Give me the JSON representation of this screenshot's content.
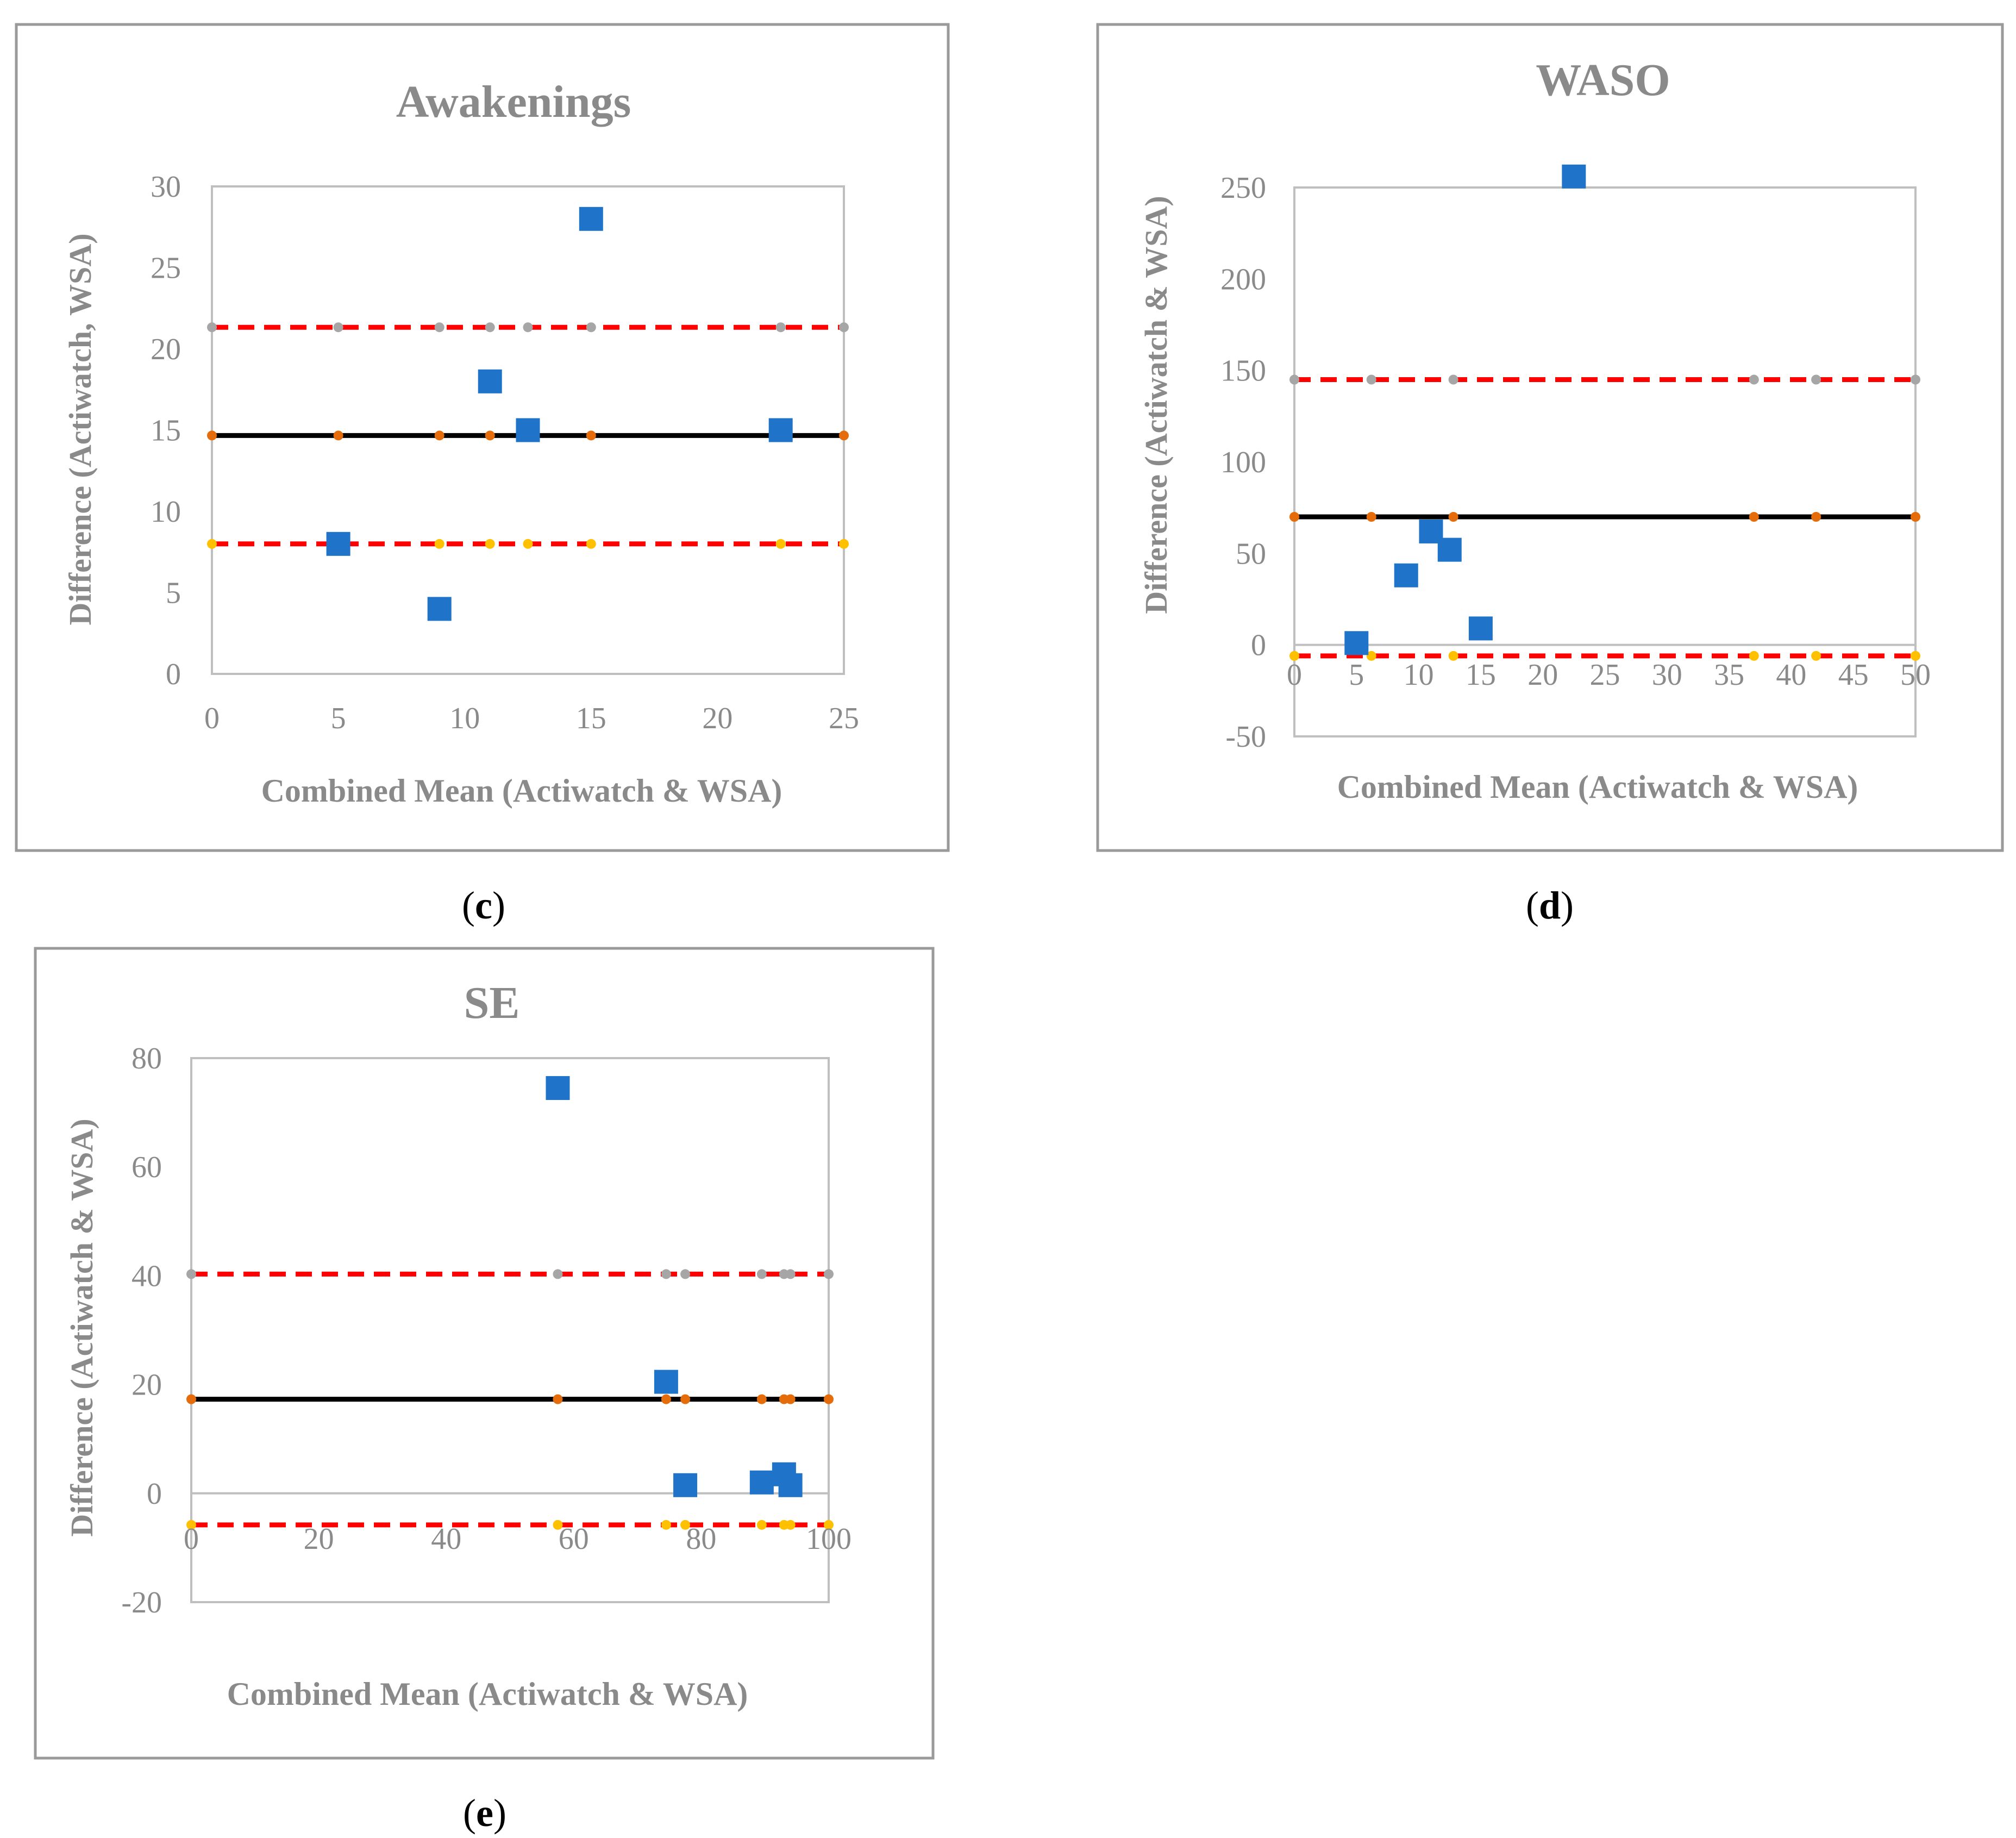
{
  "colors": {
    "frame": "#9a9a9a",
    "plot_border": "#bfbfbf",
    "points": "#1f74c9",
    "mean_line": "#000000",
    "loa_line": "#ff0000",
    "upper_markers": "#a6a6a6",
    "mean_markers": "#e46c0a",
    "lower_markers": "#ffc000"
  },
  "chart_data": [
    {
      "id": "c",
      "type": "scatter",
      "caption_letter": "c",
      "title": "Awakenings",
      "xlabel": "Combined Mean (Actiwatch & WSA)",
      "ylabel": "Difference (Actiwatch, WSA)",
      "xlim": [
        0,
        25
      ],
      "ylim": [
        0,
        30
      ],
      "x_ticks": [
        0,
        5,
        10,
        15,
        20,
        25
      ],
      "y_ticks": [
        0,
        5,
        10,
        15,
        20,
        25,
        30
      ],
      "series": [
        {
          "name": "Difference",
          "x": [
            5,
            9,
            11,
            12.5,
            15,
            22.5
          ],
          "y": [
            8,
            4,
            18,
            15,
            28,
            15
          ]
        }
      ],
      "mean_difference": 14.67,
      "upper_limit": 21.33,
      "lower_limit": 8.0,
      "reference_x": [
        0,
        5,
        9,
        11,
        12.5,
        15,
        22.5,
        25
      ]
    },
    {
      "id": "d",
      "type": "scatter",
      "caption_letter": "d",
      "title": "WASO",
      "xlabel": "Combined Mean (Actiwatch & WSA)",
      "ylabel": "Difference (Actiwatch & WSA)",
      "xlim": [
        0,
        50
      ],
      "ylim": [
        -50,
        250
      ],
      "x_ticks": [
        0,
        5,
        10,
        15,
        20,
        25,
        30,
        35,
        40,
        45,
        50
      ],
      "y_ticks": [
        -50,
        0,
        50,
        100,
        150,
        200,
        250
      ],
      "series": [
        {
          "name": "Difference",
          "x": [
            5,
            9,
            11,
            12.5,
            15,
            22.5
          ],
          "y": [
            1,
            38,
            62,
            52,
            9,
            256
          ]
        }
      ],
      "mean_difference": 70,
      "upper_limit": 145,
      "lower_limit": -6,
      "reference_x": [
        0,
        6.2,
        12.8,
        37,
        42,
        50
      ]
    },
    {
      "id": "e",
      "type": "scatter",
      "caption_letter": "e",
      "title": "SE",
      "xlabel": "Combined Mean (Actiwatch & WSA)",
      "ylabel": "Difference (Actiwatch & WSA)",
      "xlim": [
        0,
        100
      ],
      "ylim": [
        -20,
        80
      ],
      "x_ticks": [
        0,
        20,
        40,
        60,
        80,
        100
      ],
      "y_ticks": [
        -20,
        0,
        20,
        40,
        60,
        80
      ],
      "series": [
        {
          "name": "Difference",
          "x": [
            57.5,
            74.5,
            77.5,
            89.5,
            93,
            94
          ],
          "y": [
            74.5,
            20.5,
            1.5,
            2,
            3.5,
            1.5
          ]
        }
      ],
      "mean_difference": 17.3,
      "upper_limit": 40.3,
      "lower_limit": -5.8,
      "reference_x": [
        0,
        57.5,
        74.5,
        77.5,
        89.5,
        93,
        94,
        100
      ]
    }
  ]
}
